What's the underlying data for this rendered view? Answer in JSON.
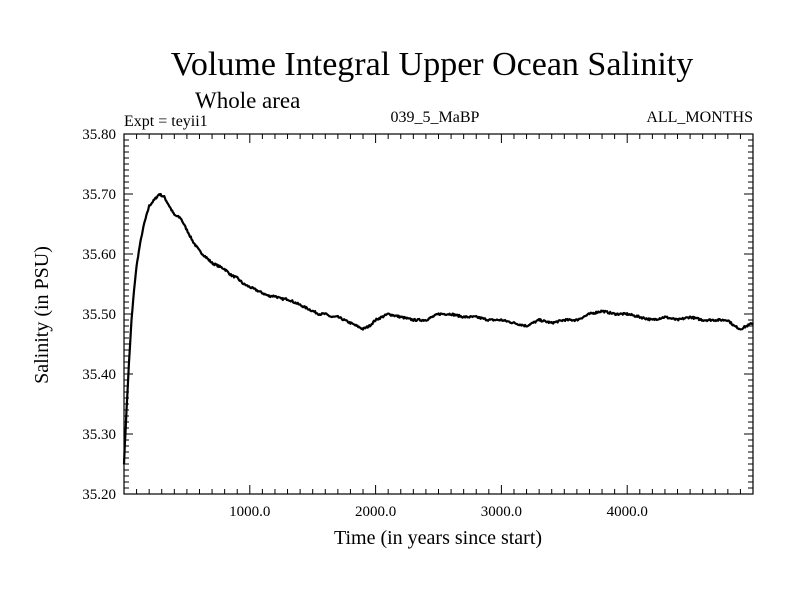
{
  "chart_data": {
    "type": "line",
    "title": "Volume Integral Upper Ocean Salinity",
    "subtitle": "Whole area",
    "header_left": "Expt = teyii1",
    "header_center": "039_5_MaBP",
    "header_right": "ALL_MONTHS",
    "xlabel": "Time (in years since start)",
    "ylabel": "Salinity (in PSU)",
    "xlim": [
      0,
      5000
    ],
    "ylim": [
      35.2,
      35.8
    ],
    "x_major_ticks": [
      1000,
      2000,
      3000,
      4000
    ],
    "x_tick_labels": [
      "1000.0",
      "2000.0",
      "3000.0",
      "4000.0"
    ],
    "y_major_ticks": [
      35.2,
      35.3,
      35.4,
      35.5,
      35.6,
      35.7,
      35.8
    ],
    "y_tick_labels": [
      "35.20",
      "35.30",
      "35.40",
      "35.50",
      "35.60",
      "35.70",
      "35.80"
    ],
    "grid": false,
    "series": [
      {
        "name": "salinity",
        "color": "#000000",
        "x": [
          0,
          20,
          40,
          60,
          80,
          100,
          130,
          160,
          200,
          240,
          280,
          320,
          360,
          400,
          450,
          500,
          550,
          600,
          650,
          700,
          750,
          800,
          850,
          900,
          950,
          1000,
          1050,
          1100,
          1150,
          1200,
          1250,
          1300,
          1350,
          1400,
          1450,
          1500,
          1550,
          1600,
          1650,
          1700,
          1750,
          1800,
          1850,
          1900,
          1950,
          2000,
          2100,
          2200,
          2300,
          2400,
          2500,
          2600,
          2700,
          2800,
          2900,
          3000,
          3100,
          3200,
          3300,
          3400,
          3500,
          3600,
          3700,
          3800,
          3900,
          4000,
          4100,
          4200,
          4300,
          4400,
          4500,
          4600,
          4700,
          4800,
          4850,
          4900,
          4950,
          5000
        ],
        "y": [
          35.25,
          35.34,
          35.42,
          35.49,
          35.54,
          35.58,
          35.62,
          35.65,
          35.68,
          35.69,
          35.7,
          35.695,
          35.68,
          35.665,
          35.66,
          35.64,
          35.62,
          35.605,
          35.595,
          35.585,
          35.58,
          35.575,
          35.565,
          35.56,
          35.55,
          35.545,
          35.54,
          35.535,
          35.53,
          35.53,
          35.525,
          35.525,
          35.52,
          35.515,
          35.51,
          35.505,
          35.5,
          35.5,
          35.495,
          35.495,
          35.49,
          35.485,
          35.48,
          35.475,
          35.48,
          35.49,
          35.5,
          35.495,
          35.49,
          35.49,
          35.5,
          35.5,
          35.495,
          35.495,
          35.49,
          35.49,
          35.485,
          35.48,
          35.49,
          35.485,
          35.49,
          35.49,
          35.5,
          35.505,
          35.5,
          35.5,
          35.495,
          35.49,
          35.495,
          35.49,
          35.495,
          35.49,
          35.49,
          35.49,
          35.48,
          35.475,
          35.48,
          35.485
        ]
      }
    ]
  }
}
